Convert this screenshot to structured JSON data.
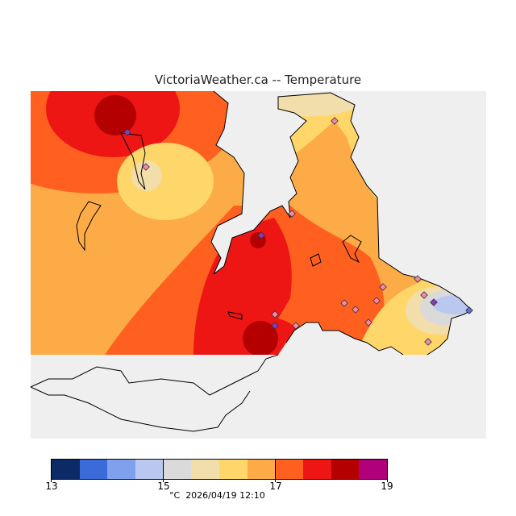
{
  "title": "VictoriaWeather.ca -- Temperature",
  "legend": {
    "colors": [
      "#0c2a66",
      "#3a6bd8",
      "#7fa0ec",
      "#bac8f0",
      "#dadada",
      "#f2deaa",
      "#ffd66a",
      "#fdab47",
      "#ff6020",
      "#ee1515",
      "#b50000",
      "#b0007a"
    ],
    "ticks": [
      "13",
      "15",
      "17",
      "19"
    ],
    "range": [
      13,
      19
    ],
    "unit": "°C",
    "timestamp": "2026/04/19 12:10"
  },
  "colors": {
    "water": "#efefef",
    "coast": "#000000"
  }
}
